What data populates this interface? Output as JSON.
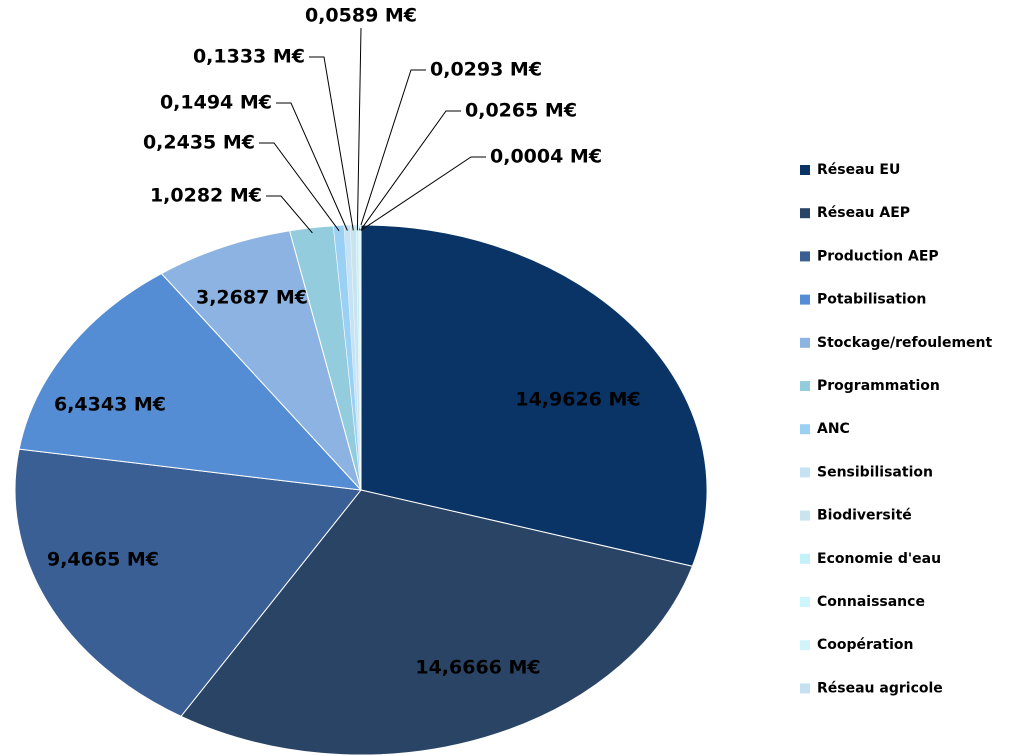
{
  "chart_data": {
    "type": "pie",
    "categories": [
      "Réseau EU",
      "Réseau AEP",
      "Production AEP",
      "Potabilisation",
      "Stockage/refoulement",
      "Programmation",
      "ANC",
      "Sensibilisation",
      "Biodiversité",
      "Economie d'eau",
      "Connaissance",
      "Coopération",
      "Réseau agricole"
    ],
    "values": [
      14.9626,
      14.6666,
      9.4665,
      6.4343,
      3.2687,
      1.0282,
      0.2435,
      0.1494,
      0.1333,
      0.0589,
      0.0293,
      0.0265,
      0.0004
    ],
    "value_labels": [
      "14,9626 M€",
      "14,6666 M€",
      "9,4665 M€",
      "6,4343 M€",
      "3,2687 M€",
      "1,0282 M€",
      "0,2435 M€",
      "0,1494 M€",
      "0,1333 M€",
      "0,0589 M€",
      "0,0293 M€",
      "0,0265 M€",
      "0,0004 M€"
    ],
    "colors": [
      "#0a3466",
      "#2a4466",
      "#3a5f95",
      "#548dd4",
      "#8db3e2",
      "#93cddd",
      "#9bd0f5",
      "#c6e2f5",
      "#c9e4ec",
      "#c4f0fa",
      "#ccf6fc",
      "#d3f3fa",
      "#c5e0f3"
    ],
    "legend": "right"
  }
}
